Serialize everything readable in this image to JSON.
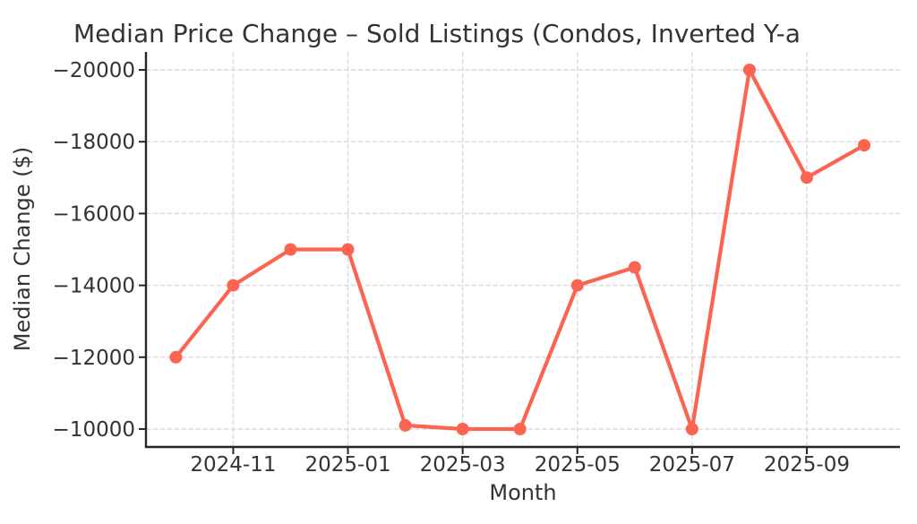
{
  "chart_data": {
    "type": "line",
    "title": "Median Price Change – Sold Listings (Condos, Inverted Y-a",
    "xlabel": "Month",
    "ylabel": "Median Change ($)",
    "x": [
      "2024-10",
      "2024-11",
      "2024-12",
      "2025-01",
      "2025-02",
      "2025-03",
      "2025-04",
      "2025-05",
      "2025-06",
      "2025-07",
      "2025-08",
      "2025-09",
      "2025-10"
    ],
    "values": [
      -12000,
      -14000,
      -15000,
      -15000,
      -10100,
      -10000,
      -10000,
      -14000,
      -14500,
      -10000,
      -20000,
      -17000,
      -17900
    ],
    "x_tick_labels": [
      "2024-11",
      "2025-01",
      "2025-03",
      "2025-05",
      "2025-07",
      "2025-09"
    ],
    "x_tick_indices": [
      1,
      3,
      5,
      7,
      9,
      11
    ],
    "y_ticks": [
      -20000,
      -18000,
      -16000,
      -14000,
      -12000,
      -10000
    ],
    "y_tick_labels": [
      "−20000",
      "−18000",
      "−16000",
      "−14000",
      "−12000",
      "−10000"
    ],
    "ylim_bottom": -9500,
    "ylim_top": -20500,
    "y_axis_inverted": true,
    "grid_style": "dashed",
    "legend": "none",
    "marker": "circle",
    "colors": {
      "line": "#FA6450",
      "grid": "#DCDCDC",
      "text": "#333333",
      "spine": "#262626"
    }
  }
}
